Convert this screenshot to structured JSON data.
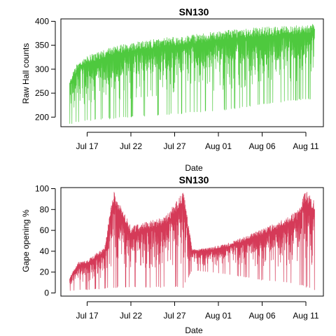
{
  "figure": {
    "colors": {
      "top_series": "#4ec93e",
      "bottom_series": "#d53a58",
      "axes": "#000000",
      "background": "#ffffff"
    }
  },
  "chart_data": [
    {
      "type": "line",
      "title": "SN130",
      "xlabel": "Date",
      "ylabel": "Raw Hall counts",
      "x_range": [
        "2014-07-14",
        "2014-08-13"
      ],
      "x_ticks": [
        {
          "date": "2014-07-17",
          "label": "Jul 17"
        },
        {
          "date": "2014-07-22",
          "label": "Jul 22"
        },
        {
          "date": "2014-07-27",
          "label": "Jul 27"
        },
        {
          "date": "2014-08-01",
          "label": "Aug 01"
        },
        {
          "date": "2014-08-06",
          "label": "Aug 06"
        },
        {
          "date": "2014-08-11",
          "label": "Aug 11"
        }
      ],
      "ylim": [
        180,
        405
      ],
      "y_ticks": [
        200,
        250,
        300,
        350,
        400
      ],
      "grid": false,
      "legend": "none",
      "series": [
        {
          "color": "#4ec93e",
          "envelope": [
            {
              "x": "2014-07-15",
              "min": 185,
              "max": 280
            },
            {
              "x": "2014-07-16",
              "min": 190,
              "max": 320
            },
            {
              "x": "2014-07-17",
              "min": 192,
              "max": 330
            },
            {
              "x": "2014-07-19",
              "min": 195,
              "max": 345
            },
            {
              "x": "2014-07-21",
              "min": 198,
              "max": 355
            },
            {
              "x": "2014-07-23",
              "min": 200,
              "max": 362
            },
            {
              "x": "2014-07-25",
              "min": 203,
              "max": 367
            },
            {
              "x": "2014-07-27",
              "min": 205,
              "max": 372
            },
            {
              "x": "2014-07-29",
              "min": 208,
              "max": 376
            },
            {
              "x": "2014-07-31",
              "min": 212,
              "max": 380
            },
            {
              "x": "2014-08-02",
              "min": 215,
              "max": 385
            },
            {
              "x": "2014-08-04",
              "min": 220,
              "max": 388
            },
            {
              "x": "2014-08-06",
              "min": 225,
              "max": 391
            },
            {
              "x": "2014-08-08",
              "min": 230,
              "max": 393
            },
            {
              "x": "2014-08-10",
              "min": 235,
              "max": 395
            },
            {
              "x": "2014-08-12",
              "min": 238,
              "max": 398
            }
          ]
        }
      ]
    },
    {
      "type": "line",
      "title": "SN130",
      "xlabel": "Date",
      "ylabel": "Gape opening %",
      "x_range": [
        "2014-07-14",
        "2014-08-13"
      ],
      "x_ticks": [
        {
          "date": "2014-07-17",
          "label": "Jul 17"
        },
        {
          "date": "2014-07-22",
          "label": "Jul 22"
        },
        {
          "date": "2014-07-27",
          "label": "Jul 27"
        },
        {
          "date": "2014-08-01",
          "label": "Aug 01"
        },
        {
          "date": "2014-08-06",
          "label": "Aug 06"
        },
        {
          "date": "2014-08-11",
          "label": "Aug 11"
        }
      ],
      "ylim": [
        -3,
        101
      ],
      "y_ticks": [
        0,
        20,
        40,
        60,
        80,
        100
      ],
      "grid": false,
      "legend": "none",
      "series": [
        {
          "color": "#d53a58",
          "envelope": [
            {
              "x": "2014-07-15",
              "min": 2,
              "max": 15
            },
            {
              "x": "2014-07-16",
              "min": 3,
              "max": 30
            },
            {
              "x": "2014-07-17",
              "min": 3,
              "max": 32
            },
            {
              "x": "2014-07-19",
              "min": 4,
              "max": 45
            },
            {
              "x": "2014-07-20",
              "min": 5,
              "max": 100
            },
            {
              "x": "2014-07-22",
              "min": 5,
              "max": 65
            },
            {
              "x": "2014-07-24",
              "min": 5,
              "max": 70
            },
            {
              "x": "2014-07-26",
              "min": 5,
              "max": 75
            },
            {
              "x": "2014-07-28",
              "min": 5,
              "max": 100
            },
            {
              "x": "2014-07-29",
              "min": 22,
              "max": 42
            },
            {
              "x": "2014-07-31",
              "min": 20,
              "max": 44
            },
            {
              "x": "2014-08-02",
              "min": 18,
              "max": 48
            },
            {
              "x": "2014-08-04",
              "min": 15,
              "max": 55
            },
            {
              "x": "2014-08-06",
              "min": 12,
              "max": 62
            },
            {
              "x": "2014-08-08",
              "min": 10,
              "max": 70
            },
            {
              "x": "2014-08-10",
              "min": 8,
              "max": 80
            },
            {
              "x": "2014-08-11",
              "min": 5,
              "max": 100
            },
            {
              "x": "2014-08-12",
              "min": 3,
              "max": 90
            }
          ]
        }
      ]
    }
  ]
}
